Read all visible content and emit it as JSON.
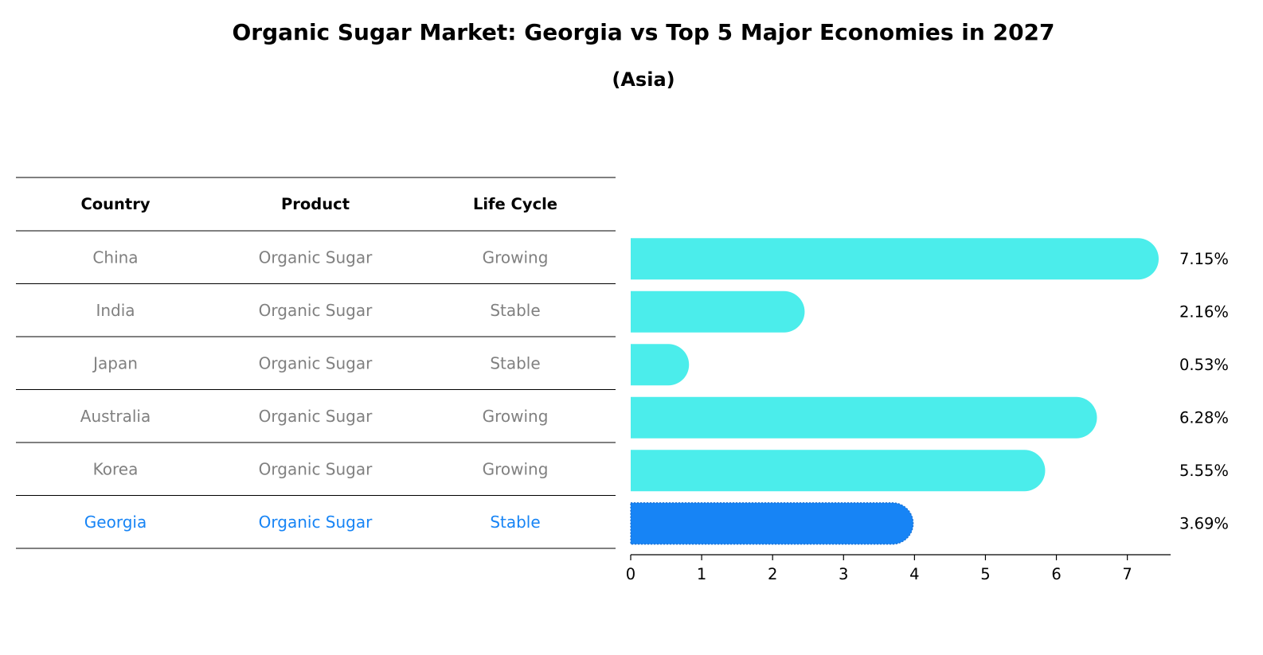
{
  "chart_data": {
    "type": "bar",
    "orientation": "horizontal",
    "title": "Organic Sugar Market: Georgia vs Top 5 Major Economies in 2027",
    "subtitle": "(Asia)",
    "table": {
      "headers": [
        "Country",
        "Product",
        "Life Cycle"
      ],
      "rows": [
        {
          "country": "China",
          "product": "Organic Sugar",
          "life_cycle": "Growing",
          "highlight": false
        },
        {
          "country": "India",
          "product": "Organic Sugar",
          "life_cycle": "Stable",
          "highlight": false
        },
        {
          "country": "Japan",
          "product": "Organic Sugar",
          "life_cycle": "Stable",
          "highlight": false
        },
        {
          "country": "Australia",
          "product": "Organic Sugar",
          "life_cycle": "Growing",
          "highlight": false
        },
        {
          "country": "Korea",
          "product": "Organic Sugar",
          "life_cycle": "Growing",
          "highlight": false
        },
        {
          "country": "Georgia",
          "product": "Organic Sugar",
          "life_cycle": "Stable",
          "highlight": true
        }
      ]
    },
    "categories": [
      "China",
      "India",
      "Japan",
      "Australia",
      "Korea",
      "Georgia"
    ],
    "values": [
      7.15,
      2.16,
      0.53,
      6.28,
      5.55,
      3.69
    ],
    "value_labels": [
      "7.15%",
      "2.16%",
      "0.53%",
      "6.28%",
      "5.55%",
      "3.69%"
    ],
    "xlim": [
      0,
      7.5
    ],
    "xticks": [
      0,
      1,
      2,
      3,
      4,
      5,
      6,
      7
    ],
    "xlabel": "",
    "ylabel": "",
    "grid": false,
    "colors": {
      "bar": "#4BEDEB",
      "highlight_bar": "#1784F5",
      "muted_text": "#808080",
      "highlight_text": "#1784F5"
    }
  }
}
